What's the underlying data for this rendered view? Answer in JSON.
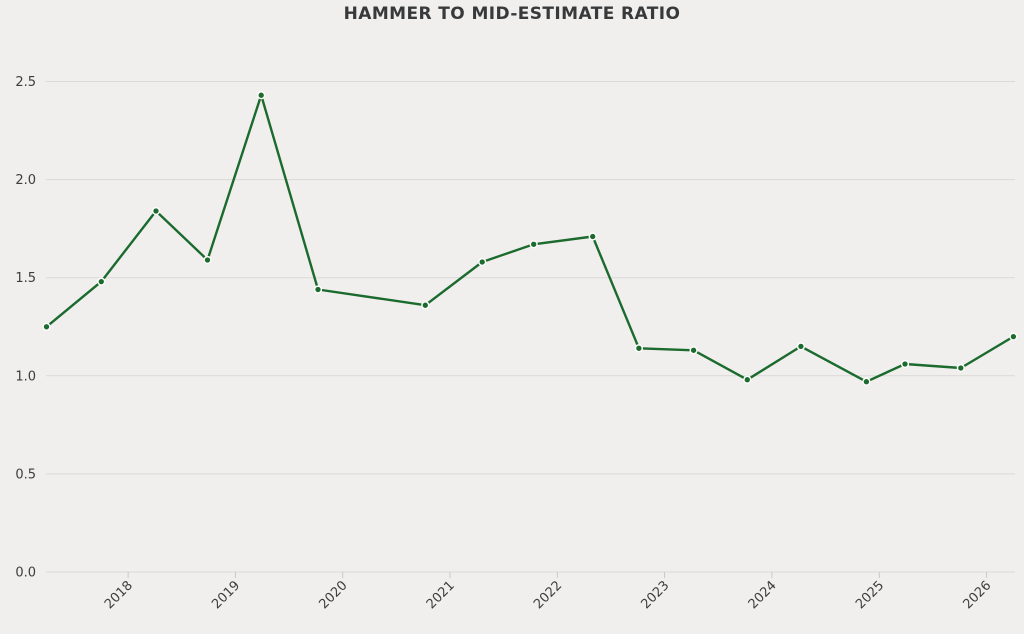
{
  "chart_data": {
    "type": "line",
    "title": "HAMMER TO MID-ESTIMATE RATIO",
    "xlabel": "",
    "ylabel": "",
    "xlim": [
      2017.235,
      2026.265
    ],
    "ylim": [
      0,
      2.5
    ],
    "x_ticks": [
      2018,
      2019,
      2020,
      2021,
      2022,
      2023,
      2024,
      2025,
      2026
    ],
    "x_tick_labels": [
      "2018",
      "2019",
      "2020",
      "2021",
      "2022",
      "2023",
      "2024",
      "2025",
      "2026"
    ],
    "y_ticks": [
      0,
      0.5,
      1.0,
      1.5,
      2.0,
      2.5
    ],
    "y_tick_labels": [
      "0.0",
      "0.5",
      "1.0",
      "1.5",
      "2.0",
      "2.5"
    ],
    "grid": "horizontal",
    "legend": "none",
    "series": [
      {
        "name": "Hammer to mid-estimate ratio",
        "color": "#1b6a2e",
        "marker": "circle",
        "points": [
          [
            2017.24,
            1.25
          ],
          [
            2017.75,
            1.48
          ],
          [
            2018.26,
            1.84
          ],
          [
            2018.74,
            1.59
          ],
          [
            2019.24,
            2.43
          ],
          [
            2019.77,
            1.44
          ],
          [
            2020.77,
            1.36
          ],
          [
            2021.3,
            1.58
          ],
          [
            2021.78,
            1.67
          ],
          [
            2022.33,
            1.71
          ],
          [
            2022.76,
            1.14
          ],
          [
            2023.27,
            1.13
          ],
          [
            2023.77,
            0.98
          ],
          [
            2024.27,
            1.15
          ],
          [
            2024.88,
            0.97
          ],
          [
            2025.24,
            1.06
          ],
          [
            2025.76,
            1.04
          ],
          [
            2026.25,
            1.2
          ]
        ]
      }
    ]
  },
  "colors": {
    "background": "#f0efed",
    "grid": "#dad9d7",
    "tick": "#c9c8c6",
    "text": "#3d3d3d",
    "title": "#37393b",
    "marker_halo": "#fcfcfa"
  }
}
